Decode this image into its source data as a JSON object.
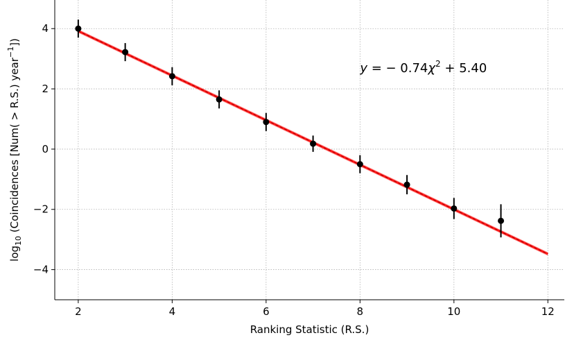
{
  "chart_data": {
    "type": "scatter",
    "xlabel": "Ranking Statistic (R.S.)",
    "ylabel_parts": {
      "prefix": "log",
      "prefix_sub": "10",
      "main": " (Coincidences [Num( > R.S.) year",
      "exp": "−1",
      "close": "])"
    },
    "xlim": [
      1.5,
      12.35
    ],
    "ylim": [
      -5,
      4.95
    ],
    "xticks": [
      2,
      4,
      6,
      8,
      10,
      12
    ],
    "yticks": [
      -4,
      -2,
      0,
      2,
      4
    ],
    "xtick_labels": [
      "2",
      "4",
      "6",
      "8",
      "10",
      "12"
    ],
    "ytick_labels": [
      "−4",
      "−2",
      "0",
      "2",
      "4"
    ],
    "grid": true,
    "points": [
      {
        "x": 2,
        "y": 4.0,
        "err": 0.3
      },
      {
        "x": 3,
        "y": 3.22,
        "err": 0.3
      },
      {
        "x": 4,
        "y": 2.42,
        "err": 0.3
      },
      {
        "x": 5,
        "y": 1.65,
        "err": 0.3
      },
      {
        "x": 6,
        "y": 0.9,
        "err": 0.3
      },
      {
        "x": 7,
        "y": 0.18,
        "err": 0.27
      },
      {
        "x": 8,
        "y": -0.5,
        "err": 0.3
      },
      {
        "x": 9,
        "y": -1.18,
        "err": 0.32
      },
      {
        "x": 10,
        "y": -1.97,
        "err": 0.35
      },
      {
        "x": 11,
        "y": -2.38,
        "err": 0.55
      }
    ],
    "fit": {
      "slope": -0.74,
      "intercept": 5.4,
      "x_range": [
        2,
        12
      ],
      "band": 0.06
    },
    "annotation": {
      "y": "y",
      "eq": " = − 0.74",
      "chi": "χ",
      "sup": "2",
      "rest": " + 5.40",
      "anchor_x": 8.0,
      "anchor_y": 2.55
    },
    "colors": {
      "fit": "#ff0000",
      "points": "#000000",
      "grid": "#b0b0b0"
    }
  }
}
